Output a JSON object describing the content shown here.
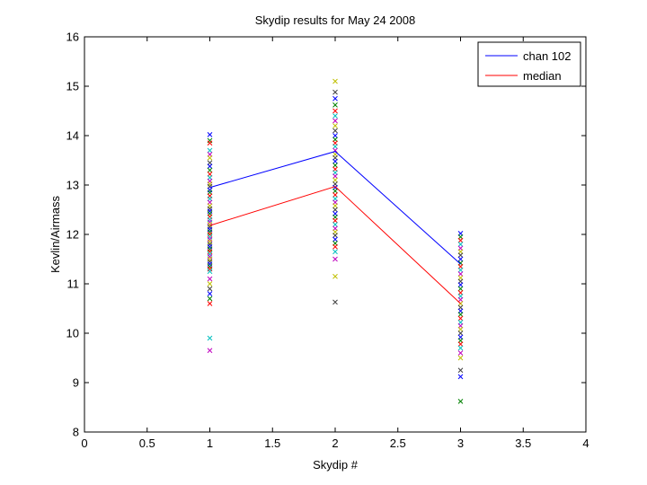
{
  "chart_data": {
    "type": "scatter",
    "title": "Skydip results for May 24 2008",
    "xlabel": "Skydip #",
    "ylabel": "Kevlin/Airmass",
    "xlim": [
      0,
      4
    ],
    "ylim": [
      8,
      16
    ],
    "xticks": [
      0,
      0.5,
      1,
      1.5,
      2,
      2.5,
      3,
      3.5,
      4
    ],
    "yticks": [
      8,
      9,
      10,
      11,
      12,
      13,
      14,
      15,
      16
    ],
    "legend_position": "top-right",
    "series": [
      {
        "name": "chan 102",
        "color": "#0000ff",
        "x": [
          1,
          2,
          3
        ],
        "y": [
          12.95,
          13.68,
          11.4
        ]
      },
      {
        "name": "median",
        "color": "#ff0000",
        "x": [
          1,
          2,
          3
        ],
        "y": [
          12.18,
          12.97,
          10.6
        ]
      }
    ],
    "scatter_colors": [
      "#0000ff",
      "#008000",
      "#ff0000",
      "#00bfbf",
      "#bf00bf",
      "#bfbf00",
      "#404040"
    ],
    "scatter": [
      {
        "x": 1,
        "y": [
          14.02,
          13.9,
          13.85,
          13.7,
          13.62,
          13.55,
          13.45,
          13.38,
          13.3,
          13.22,
          13.15,
          13.08,
          13.02,
          12.97,
          12.9,
          12.85,
          12.78,
          12.72,
          12.65,
          12.58,
          12.52,
          12.47,
          12.42,
          12.36,
          12.3,
          12.25,
          12.2,
          12.15,
          12.1,
          12.05,
          12.0,
          11.95,
          11.9,
          11.85,
          11.8,
          11.75,
          11.7,
          11.65,
          11.6,
          11.55,
          11.5,
          11.45,
          11.4,
          11.35,
          11.3,
          11.25,
          11.1,
          11.0,
          10.9,
          10.8,
          10.7,
          10.6,
          9.9,
          9.65
        ]
      },
      {
        "x": 2,
        "y": [
          15.1,
          14.88,
          14.75,
          14.62,
          14.5,
          14.4,
          14.3,
          14.2,
          14.1,
          14.0,
          13.92,
          13.85,
          13.78,
          13.7,
          13.62,
          13.55,
          13.48,
          13.4,
          13.32,
          13.25,
          13.18,
          13.1,
          13.02,
          12.95,
          12.88,
          12.8,
          12.72,
          12.65,
          12.58,
          12.5,
          12.42,
          12.35,
          12.28,
          12.2,
          12.12,
          12.05,
          11.98,
          11.9,
          11.82,
          11.75,
          11.65,
          11.5,
          11.15,
          10.63
        ]
      },
      {
        "x": 3,
        "y": [
          12.02,
          11.95,
          11.88,
          11.8,
          11.72,
          11.65,
          11.58,
          11.5,
          11.42,
          11.35,
          11.28,
          11.2,
          11.12,
          11.05,
          10.98,
          10.9,
          10.82,
          10.75,
          10.68,
          10.6,
          10.52,
          10.45,
          10.38,
          10.3,
          10.22,
          10.15,
          10.08,
          10.0,
          9.92,
          9.85,
          9.78,
          9.7,
          9.6,
          9.5,
          9.25,
          9.12,
          8.62
        ]
      }
    ]
  }
}
